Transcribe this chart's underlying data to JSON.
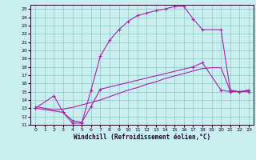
{
  "xlabel": "Windchill (Refroidissement éolien,°C)",
  "background_color": "#c8eef0",
  "grid_color": "#90c8c0",
  "line_color": "#aa22aa",
  "xlim": [
    -0.5,
    23.5
  ],
  "ylim": [
    11,
    25.5
  ],
  "xticks": [
    0,
    1,
    2,
    3,
    4,
    5,
    6,
    7,
    8,
    9,
    10,
    11,
    12,
    13,
    14,
    15,
    16,
    17,
    18,
    19,
    20,
    21,
    22,
    23
  ],
  "yticks": [
    11,
    12,
    13,
    14,
    15,
    16,
    17,
    18,
    19,
    20,
    21,
    22,
    23,
    24,
    25
  ],
  "line1_x": [
    0,
    2,
    3,
    4,
    5,
    6,
    7,
    8,
    9,
    10,
    11,
    12,
    13,
    14,
    15,
    16,
    17,
    18,
    20,
    21,
    22,
    23
  ],
  "line1_y": [
    13,
    14.5,
    12.5,
    11.2,
    11.2,
    15.2,
    19.3,
    21.2,
    22.5,
    23.5,
    24.2,
    24.5,
    24.8,
    25.0,
    25.3,
    25.3,
    23.8,
    22.5,
    22.5,
    15.2,
    15.0,
    15.0
  ],
  "line2_x": [
    0,
    3,
    4,
    5,
    6,
    7,
    17,
    18,
    20,
    21,
    22,
    23
  ],
  "line2_y": [
    13,
    12.5,
    11.5,
    11.3,
    13.2,
    15.3,
    18.0,
    18.5,
    15.2,
    15.0,
    15.0,
    15.2
  ],
  "line3_x": [
    0,
    2,
    3,
    4,
    5,
    6,
    7,
    8,
    9,
    10,
    11,
    12,
    13,
    14,
    15,
    16,
    17,
    18,
    19,
    20,
    21,
    22,
    23
  ],
  "line3_y": [
    13.2,
    12.8,
    12.9,
    13.1,
    13.4,
    13.7,
    14.0,
    14.4,
    14.8,
    15.2,
    15.5,
    15.9,
    16.2,
    16.6,
    16.9,
    17.2,
    17.5,
    17.8,
    17.9,
    17.9,
    15.1,
    15.0,
    15.2
  ],
  "tick_labelsize": 4.5,
  "xlabel_fontsize": 5.5
}
